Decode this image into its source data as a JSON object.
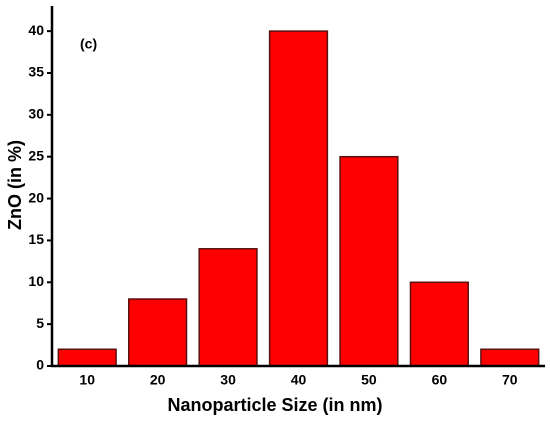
{
  "chart_data": {
    "type": "bar",
    "annotation": "(c)",
    "x_label": "Nanoparticle Size (in nm)",
    "y_label": "ZnO (in %)",
    "categories": [
      "10",
      "20",
      "30",
      "40",
      "50",
      "60",
      "70"
    ],
    "values": [
      2,
      8,
      14,
      40,
      25,
      10,
      2
    ],
    "color": "#ff0000",
    "ylim": [
      0,
      43
    ],
    "yticks": [
      0,
      5,
      10,
      15,
      20,
      25,
      30,
      35,
      40
    ],
    "grid": false
  }
}
